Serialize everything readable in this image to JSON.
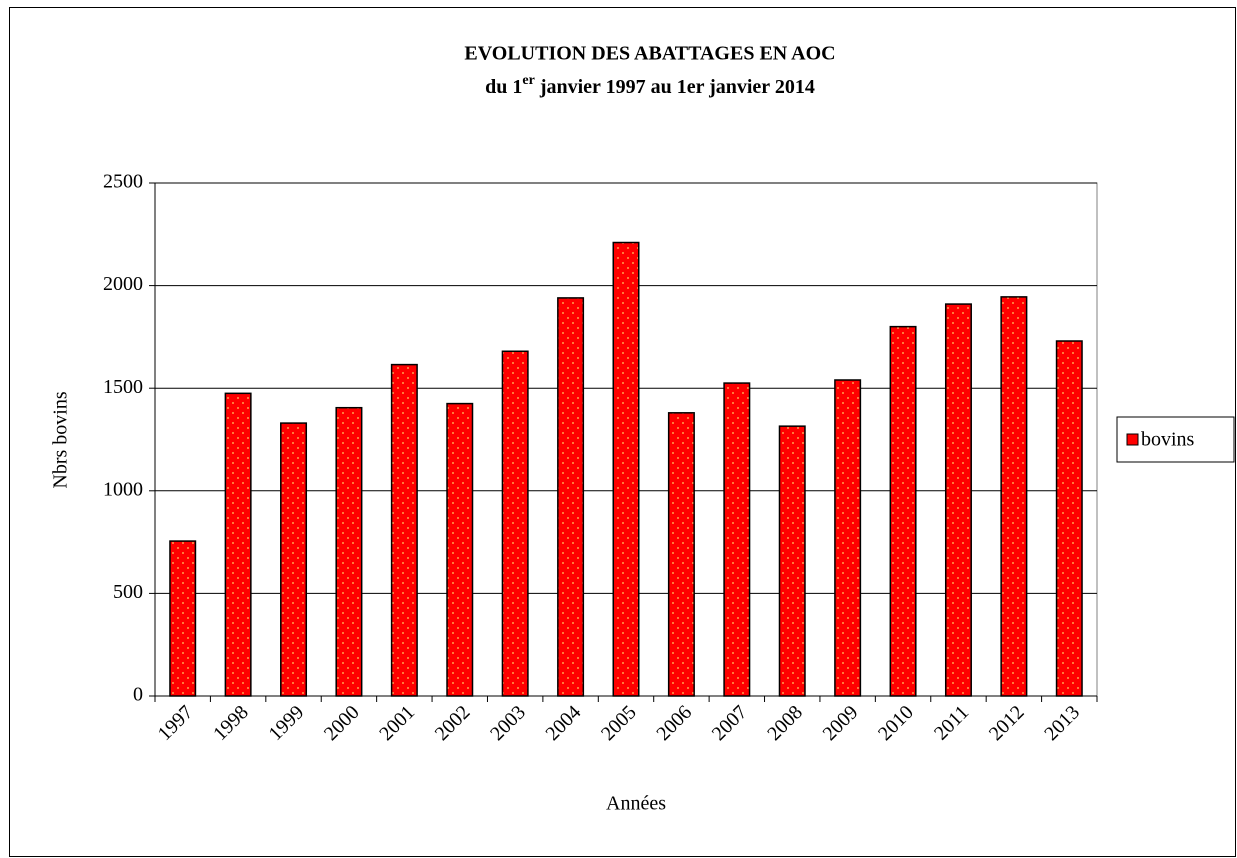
{
  "chart_data": {
    "type": "bar",
    "title": "EVOLUTION DES ABATTAGES EN AOC",
    "subtitle_parts": [
      "du 1",
      "er",
      " janvier 1997 au 1er janvier 2014"
    ],
    "x_label": "Années",
    "y_label": "Nbrs bovins",
    "categories": [
      "1997",
      "1998",
      "1999",
      "2000",
      "2001",
      "2002",
      "2003",
      "2004",
      "2005",
      "2006",
      "2007",
      "2008",
      "2009",
      "2010",
      "2011",
      "2012",
      "2013"
    ],
    "series": [
      {
        "name": "bovins",
        "color": "#ff0000",
        "values": [
          755,
          1475,
          1330,
          1405,
          1615,
          1425,
          1680,
          1940,
          2210,
          1380,
          1525,
          1315,
          1540,
          1800,
          1910,
          1945,
          1730
        ]
      }
    ],
    "ylim": [
      0,
      2500
    ],
    "yticks": [
      0,
      500,
      1000,
      1500,
      2000,
      2500
    ],
    "grid": true,
    "legend": "right"
  }
}
